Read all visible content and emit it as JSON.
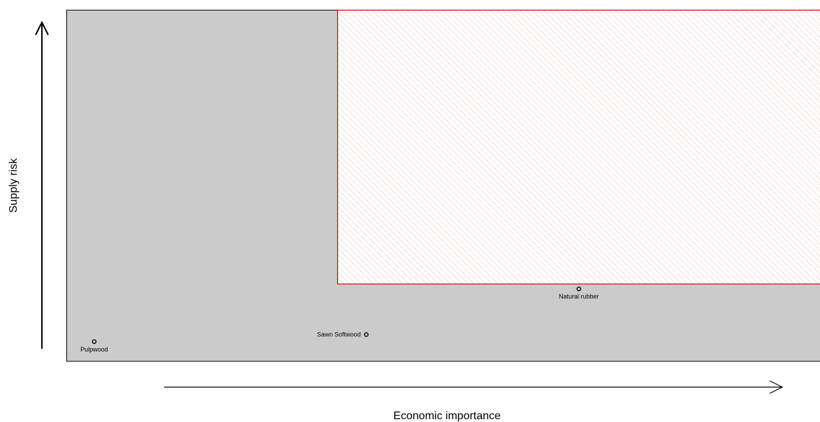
{
  "chart_data": {
    "type": "scatter",
    "title": "",
    "xlabel": "Economic importance",
    "ylabel": "Supply risk",
    "xlim": [
      0,
      10
    ],
    "ylim": [
      0,
      5
    ],
    "grid": false,
    "legend": "none",
    "critical_zone": {
      "x_from": 3.6,
      "x_to": 10,
      "y_from": 1.1,
      "y_to": 5,
      "edge_color": "#d40000",
      "hatch_color": "#f2b6b6"
    },
    "points": [
      {
        "label": "Pulpwood",
        "x": 0.37,
        "y": 0.28,
        "label_position": "below"
      },
      {
        "label": "Sawn Softwood",
        "x": 3.98,
        "y": 0.38,
        "label_position": "left"
      },
      {
        "label": "Natural rubber",
        "x": 6.8,
        "y": 1.03,
        "label_position": "below"
      }
    ],
    "colors": {
      "panel_background": "#cbcbcb",
      "point_stroke": "#000000"
    }
  }
}
